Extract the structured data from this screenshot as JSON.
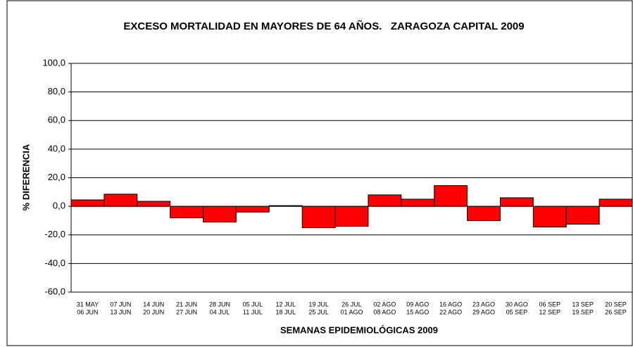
{
  "chart_data": {
    "type": "bar",
    "title": "EXCESO MORTALIDAD EN MAYORES DE 64 AÑOS.   ZARAGOZA CAPITAL 2009",
    "x_label": "SEMANAS EPIDEMIOLÓGICAS 2009",
    "y_label": "% DIFERENCIA",
    "categories": [
      [
        "31 MAY",
        "06 JUN"
      ],
      [
        "07 JUN",
        "13 JUN"
      ],
      [
        "14 JUN",
        "20 JUN"
      ],
      [
        "21 JUN",
        "27 JUN"
      ],
      [
        "28 JUN",
        "04 JUL"
      ],
      [
        "05 JUL",
        "11 JUL"
      ],
      [
        "12 JUL",
        "18 JUL"
      ],
      [
        "19 JUL",
        "25 JUL"
      ],
      [
        "26 JUL",
        "01 AGO"
      ],
      [
        "02 AGO",
        "08 AGO"
      ],
      [
        "09 AGO",
        "15 AGO"
      ],
      [
        "16 AGO",
        "22 AGO"
      ],
      [
        "23 AGO",
        "29 AGO"
      ],
      [
        "30 AGO",
        "05 SEP"
      ],
      [
        "06 SEP",
        "12 SEP"
      ],
      [
        "13 SEP",
        "19 SEP"
      ],
      [
        "20 SEP",
        "26 SEP"
      ]
    ],
    "values": [
      4.5,
      8.5,
      3.5,
      -8,
      -11,
      -4,
      0.5,
      -15,
      -14,
      8,
      5,
      14.5,
      -10,
      6,
      -14.5,
      -12.5,
      5
    ],
    "color": "#ff0000",
    "ylim": [
      -60,
      100
    ],
    "yticks": [
      {
        "value": -60,
        "label": "-60,0"
      },
      {
        "value": -40,
        "label": "-40,0"
      },
      {
        "value": -20,
        "label": "-20,0"
      },
      {
        "value": 0,
        "label": "0,0"
      },
      {
        "value": 20,
        "label": "20,0"
      },
      {
        "value": 40,
        "label": "40,0"
      },
      {
        "value": 60,
        "label": "60,0"
      },
      {
        "value": 80,
        "label": "80,0"
      },
      {
        "value": 100,
        "label": "100,0"
      }
    ],
    "grid": true
  }
}
